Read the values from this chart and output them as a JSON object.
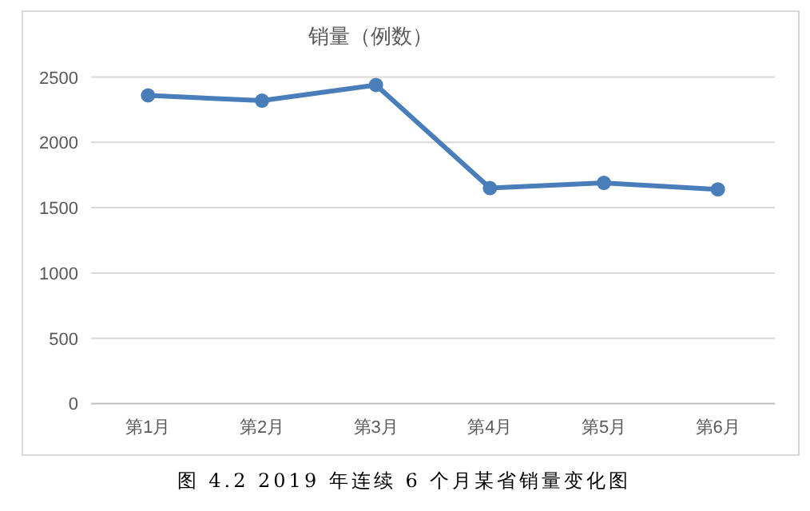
{
  "chart_data": {
    "type": "line",
    "title": "销量（例数）",
    "categories": [
      "第1月",
      "第2月",
      "第3月",
      "第4月",
      "第5月",
      "第6月"
    ],
    "values": [
      2360,
      2320,
      2440,
      1650,
      1690,
      1640
    ],
    "color": "#4a7ebb",
    "marker": "circle",
    "line_style": "solid",
    "ylim": [
      0,
      2500
    ],
    "yticks": [
      0,
      500,
      1000,
      1500,
      2000,
      2500
    ],
    "grid": "y",
    "annotations": [
      "图 4.2 2019 年连续 6 个月某省销量变化图"
    ]
  }
}
